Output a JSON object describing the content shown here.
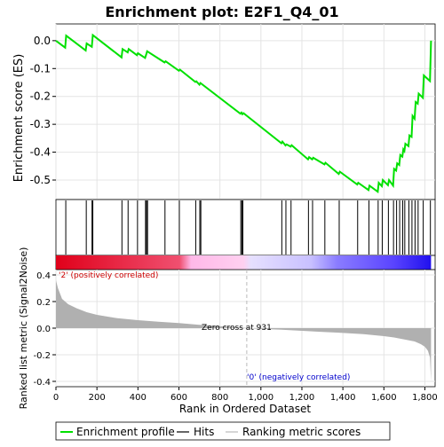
{
  "title": "Enrichment plot: E2F1_Q4_01",
  "colors": {
    "es_line": "#00e000",
    "hit_line": "#000000",
    "metric_fill": "#b0b0b0",
    "pos_label": "#cc0000",
    "neg_label": "#0000cc",
    "zero_cross_line": "#bbbbbb",
    "heat_red": "#e0001a",
    "heat_pink": "#ffb8e8",
    "heat_lavender": "#d8d0ff",
    "heat_blue": "#3c28ff"
  },
  "chart_data": [
    {
      "panel": "enrichment",
      "type": "line",
      "ylabel": "Enrichment score (ES)",
      "xlim": [
        0,
        1850
      ],
      "ylim": [
        -0.57,
        0.06
      ],
      "yticks": [
        0.0,
        -0.1,
        -0.2,
        -0.3,
        -0.4,
        -0.5
      ],
      "ytick_labels": [
        "0.0",
        "-0.1",
        "-0.2",
        "-0.3",
        "-0.4",
        "-0.5"
      ],
      "grid": true,
      "x": [
        0,
        45,
        50,
        145,
        150,
        175,
        180,
        320,
        325,
        350,
        355,
        395,
        400,
        435,
        440,
        445,
        530,
        535,
        600,
        605,
        680,
        685,
        700,
        705,
        900,
        905,
        910,
        915,
        1100,
        1105,
        1120,
        1125,
        1145,
        1150,
        1230,
        1235,
        1250,
        1255,
        1310,
        1315,
        1380,
        1385,
        1470,
        1475,
        1525,
        1530,
        1570,
        1575,
        1590,
        1595,
        1620,
        1625,
        1645,
        1650,
        1660,
        1665,
        1675,
        1680,
        1690,
        1695,
        1700,
        1705,
        1720,
        1725,
        1735,
        1740,
        1750,
        1755,
        1765,
        1770,
        1790,
        1795,
        1825,
        1830
      ],
      "y": [
        0.0,
        -0.025,
        0.018,
        -0.035,
        -0.01,
        -0.022,
        0.02,
        -0.06,
        -0.03,
        -0.042,
        -0.03,
        -0.052,
        -0.045,
        -0.062,
        -0.05,
        -0.038,
        -0.078,
        -0.074,
        -0.108,
        -0.104,
        -0.148,
        -0.146,
        -0.158,
        -0.152,
        -0.262,
        -0.258,
        -0.264,
        -0.26,
        -0.368,
        -0.362,
        -0.376,
        -0.372,
        -0.38,
        -0.375,
        -0.426,
        -0.418,
        -0.426,
        -0.42,
        -0.444,
        -0.438,
        -0.478,
        -0.47,
        -0.516,
        -0.51,
        -0.536,
        -0.52,
        -0.542,
        -0.51,
        -0.522,
        -0.5,
        -0.518,
        -0.5,
        -0.52,
        -0.46,
        -0.466,
        -0.44,
        -0.446,
        -0.41,
        -0.416,
        -0.39,
        -0.396,
        -0.37,
        -0.378,
        -0.34,
        -0.345,
        -0.27,
        -0.28,
        -0.22,
        -0.226,
        -0.19,
        -0.205,
        -0.125,
        -0.145,
        0.0
      ]
    },
    {
      "panel": "hits",
      "type": "scatter",
      "x": [
        48,
        148,
        176,
        180,
        322,
        352,
        398,
        437,
        442,
        447,
        532,
        602,
        682,
        702,
        707,
        902,
        907,
        912,
        1102,
        1122,
        1147,
        1232,
        1252,
        1312,
        1382,
        1472,
        1527,
        1572,
        1592,
        1622,
        1647,
        1662,
        1677,
        1692,
        1702,
        1722,
        1737,
        1752,
        1767,
        1792,
        1827
      ]
    },
    {
      "panel": "ranked_metric",
      "type": "area",
      "xlabel": "Rank in Ordered Dataset",
      "ylabel": "Ranked list metric (Signal2Noise)",
      "xlim": [
        0,
        1850
      ],
      "ylim": [
        -0.44,
        0.44
      ],
      "xticks": [
        0,
        200,
        400,
        600,
        800,
        1000,
        1200,
        1400,
        1600,
        1800
      ],
      "xtick_labels": [
        "0",
        "200",
        "400",
        "600",
        "800",
        "1,000",
        "1,200",
        "1,400",
        "1,600",
        "1,800"
      ],
      "yticks": [
        0.4,
        0.2,
        0.0,
        -0.2,
        -0.4
      ],
      "ytick_labels": [
        "0.4",
        "0.2",
        "0.0",
        "-0.2",
        "-0.4"
      ],
      "grid": true,
      "x": [
        0,
        10,
        30,
        60,
        100,
        150,
        200,
        300,
        400,
        500,
        600,
        700,
        800,
        900,
        931,
        1000,
        1100,
        1200,
        1300,
        1400,
        1500,
        1600,
        1650,
        1700,
        1750,
        1780,
        1800,
        1815,
        1825,
        1830
      ],
      "y": [
        0.36,
        0.3,
        0.22,
        0.18,
        0.15,
        0.12,
        0.1,
        0.075,
        0.06,
        0.048,
        0.038,
        0.025,
        0.015,
        0.005,
        0.0,
        -0.006,
        -0.012,
        -0.02,
        -0.028,
        -0.036,
        -0.045,
        -0.06,
        -0.07,
        -0.085,
        -0.1,
        -0.12,
        -0.14,
        -0.17,
        -0.22,
        -0.4
      ],
      "zero_cross": 931,
      "annotations": {
        "zero_cross": "Zero cross at 931",
        "positive": "'2' (positively correlated)",
        "negative": "'0' (negatively correlated)"
      }
    }
  ],
  "legend": {
    "items": [
      {
        "label": "Enrichment profile",
        "color": "#00e000"
      },
      {
        "label": "Hits",
        "color": "#000000"
      },
      {
        "label": "Ranking metric scores",
        "color": "#bbbbbb"
      }
    ]
  }
}
